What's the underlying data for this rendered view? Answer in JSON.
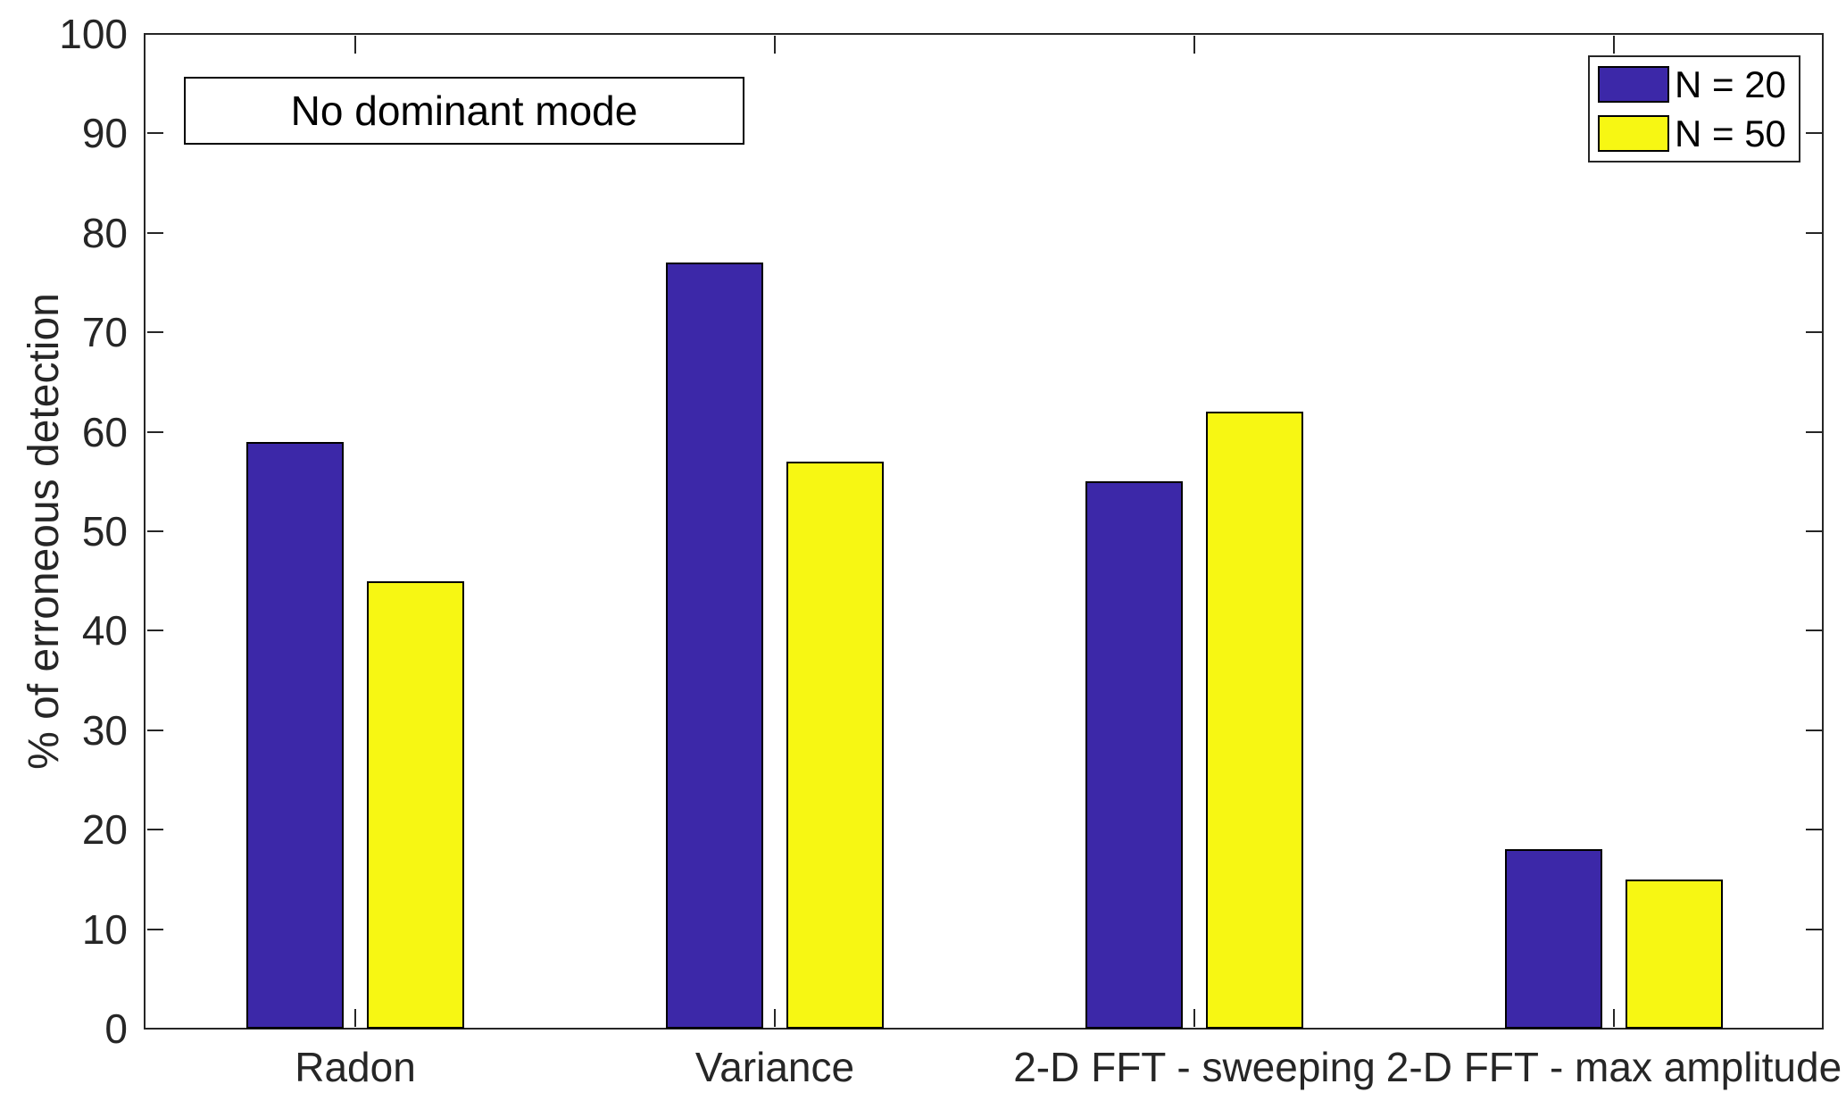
{
  "figure": {
    "background": "#ffffff",
    "axis_color": "#262626",
    "text_color": "#262626",
    "bar_edge_color": "#000000"
  },
  "chart_data": {
    "type": "bar",
    "annotation": "No dominant mode",
    "categories": [
      "Radon",
      "Variance",
      "2-D FFT - sweeping",
      "2-D FFT - max amplitude"
    ],
    "series": [
      {
        "name": "N = 20",
        "color": "#3C28A8",
        "values": [
          59,
          77,
          55,
          18
        ]
      },
      {
        "name": "N = 50",
        "color": "#F7F713",
        "values": [
          45,
          57,
          62,
          15
        ]
      }
    ],
    "xlabel": "",
    "ylabel": "% of erroneous detection",
    "ylim": [
      0,
      100
    ],
    "yticks": [
      0,
      10,
      20,
      30,
      40,
      50,
      60,
      70,
      80,
      90,
      100
    ],
    "grid": false,
    "legend_position": "top-right"
  }
}
